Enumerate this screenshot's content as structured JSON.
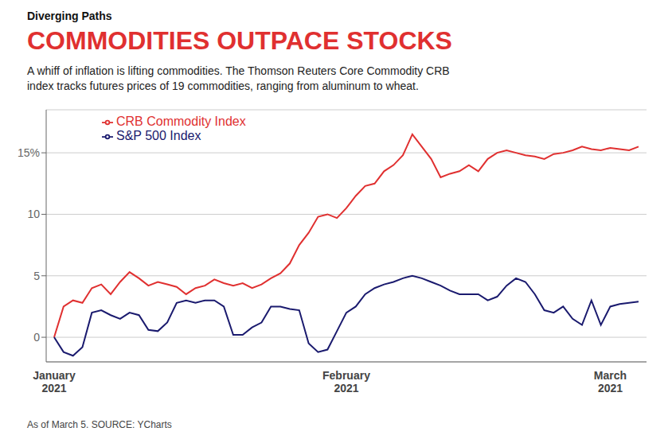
{
  "chart_data": {
    "type": "line",
    "title": "COMMODITIES OUTPACE STOCKS",
    "subtitle": "A whiff of inflation is lifting commodities. The Thomson Reuters Core Commodity CRB\nindex tracks futures prices of 19 commodities, ranging from aluminum to wheat.",
    "annotations": [
      "Diverging Paths",
      "As of March 5.   SOURCE: YCharts"
    ],
    "categories": [
      "January\n2021",
      null,
      null,
      null,
      null,
      null,
      null,
      null,
      null,
      null,
      null,
      null,
      null,
      null,
      null,
      null,
      null,
      null,
      null,
      null,
      null,
      null,
      null,
      null,
      null,
      null,
      null,
      null,
      null,
      null,
      null,
      "February\n2021",
      null,
      null,
      null,
      null,
      null,
      null,
      null,
      null,
      null,
      null,
      null,
      null,
      null,
      null,
      null,
      null,
      null,
      null,
      null,
      null,
      null,
      null,
      null,
      null,
      null,
      null,
      null,
      "March\n2021",
      null,
      null,
      null
    ],
    "series": [
      {
        "name": "CRB Commodity Index",
        "color": "#e03030",
        "values": [
          0.0,
          2.5,
          3.0,
          2.8,
          4.0,
          4.3,
          3.5,
          4.5,
          5.3,
          4.8,
          4.2,
          4.5,
          4.3,
          4.1,
          3.5,
          4.0,
          4.2,
          4.7,
          4.4,
          4.2,
          4.4,
          4.0,
          4.3,
          4.8,
          5.2,
          6.0,
          7.5,
          8.5,
          9.8,
          10.0,
          9.7,
          10.5,
          11.5,
          12.3,
          12.5,
          13.5,
          14.0,
          14.8,
          16.5,
          15.5,
          14.5,
          13.0,
          13.3,
          13.5,
          14.0,
          13.5,
          14.5,
          15.0,
          15.2,
          15.0,
          14.8,
          14.7,
          14.5,
          14.9,
          15.0,
          15.2,
          15.5,
          15.3,
          15.2,
          15.4,
          15.3,
          15.2,
          15.5
        ]
      },
      {
        "name": "S&P 500 Index",
        "color": "#1a1a6e",
        "values": [
          0.0,
          -1.2,
          -1.5,
          -0.8,
          2.0,
          2.2,
          1.8,
          1.5,
          2.0,
          1.8,
          0.6,
          0.5,
          1.2,
          2.8,
          3.0,
          2.8,
          3.0,
          3.0,
          2.5,
          0.2,
          0.2,
          0.8,
          1.2,
          2.5,
          2.5,
          2.3,
          2.2,
          -0.5,
          -1.2,
          -1.0,
          0.5,
          2.0,
          2.5,
          3.5,
          4.0,
          4.3,
          4.5,
          4.8,
          5.0,
          4.8,
          4.5,
          4.2,
          3.8,
          3.5,
          3.5,
          3.5,
          3.0,
          3.3,
          4.2,
          4.8,
          4.5,
          3.5,
          2.2,
          2.0,
          2.5,
          1.5,
          1.0,
          3.0,
          1.0,
          2.5,
          2.7,
          2.8,
          2.9
        ]
      }
    ],
    "ylim": [
      -2.0,
      18.5
    ],
    "yticks": [
      0,
      5,
      10,
      {
        "value": 15,
        "label": "15%"
      }
    ],
    "grid": true,
    "legend": "upper left"
  }
}
